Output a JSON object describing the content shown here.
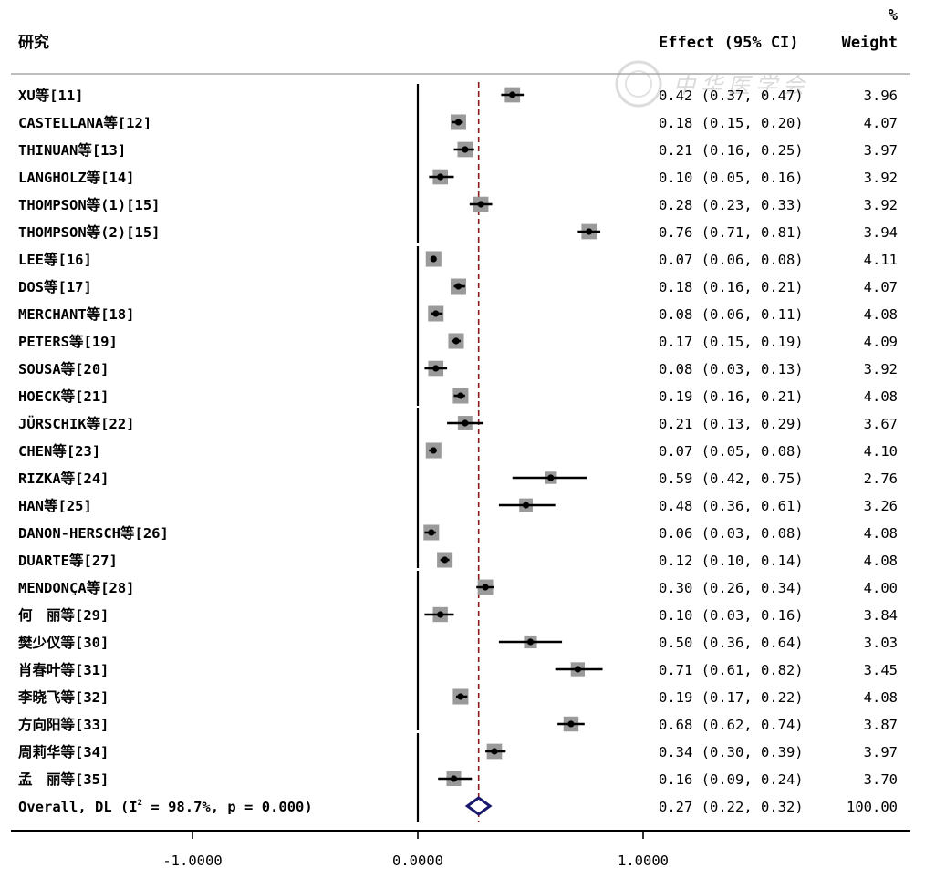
{
  "header": {
    "study": "研究",
    "effect": "Effect (95% CI)",
    "weight_pct": "%",
    "weight": "Weight"
  },
  "watermark": "中华医学会",
  "colors": {
    "ci_line": "#000000",
    "weight_box": "#9a9a9a",
    "point": "#000000",
    "overall_diamond": "#1a1a6e",
    "overall_line": "#8b1a1a",
    "axis": "#000000"
  },
  "chart_data": {
    "type": "forest",
    "xlim": [
      -1.0,
      1.0
    ],
    "x_ticks": [
      -1.0,
      0.0,
      1.0
    ],
    "x_tick_labels": [
      "-1.0000",
      "0.0000",
      "1.0000"
    ],
    "studies": [
      {
        "label": "XU等[11]",
        "effect": 0.42,
        "lo": 0.37,
        "hi": 0.47,
        "ci_text": "0.42 (0.37, 0.47)",
        "weight": "3.96"
      },
      {
        "label": "CASTELLANA等[12]",
        "effect": 0.18,
        "lo": 0.15,
        "hi": 0.2,
        "ci_text": "0.18 (0.15, 0.20)",
        "weight": "4.07"
      },
      {
        "label": "THINUAN等[13]",
        "effect": 0.21,
        "lo": 0.16,
        "hi": 0.25,
        "ci_text": "0.21 (0.16, 0.25)",
        "weight": "3.97"
      },
      {
        "label": "LANGHOLZ等[14]",
        "effect": 0.1,
        "lo": 0.05,
        "hi": 0.16,
        "ci_text": "0.10 (0.05, 0.16)",
        "weight": "3.92"
      },
      {
        "label": "THOMPSON等(1)[15]",
        "effect": 0.28,
        "lo": 0.23,
        "hi": 0.33,
        "ci_text": "0.28 (0.23, 0.33)",
        "weight": "3.92"
      },
      {
        "label": "THOMPSON等(2)[15]",
        "effect": 0.76,
        "lo": 0.71,
        "hi": 0.81,
        "ci_text": "0.76 (0.71, 0.81)",
        "weight": "3.94"
      },
      {
        "label": "LEE等[16]",
        "effect": 0.07,
        "lo": 0.06,
        "hi": 0.08,
        "ci_text": "0.07 (0.06, 0.08)",
        "weight": "4.11"
      },
      {
        "label": "DOS等[17]",
        "effect": 0.18,
        "lo": 0.16,
        "hi": 0.21,
        "ci_text": "0.18 (0.16, 0.21)",
        "weight": "4.07"
      },
      {
        "label": "MERCHANT等[18]",
        "effect": 0.08,
        "lo": 0.06,
        "hi": 0.11,
        "ci_text": "0.08 (0.06, 0.11)",
        "weight": "4.08"
      },
      {
        "label": "PETERS等[19]",
        "effect": 0.17,
        "lo": 0.15,
        "hi": 0.19,
        "ci_text": "0.17 (0.15, 0.19)",
        "weight": "4.09"
      },
      {
        "label": "SOUSA等[20]",
        "effect": 0.08,
        "lo": 0.03,
        "hi": 0.13,
        "ci_text": "0.08 (0.03, 0.13)",
        "weight": "3.92"
      },
      {
        "label": "HOECK等[21]",
        "effect": 0.19,
        "lo": 0.16,
        "hi": 0.21,
        "ci_text": "0.19 (0.16, 0.21)",
        "weight": "4.08"
      },
      {
        "label": "JÜRSCHIK等[22]",
        "effect": 0.21,
        "lo": 0.13,
        "hi": 0.29,
        "ci_text": "0.21 (0.13, 0.29)",
        "weight": "3.67"
      },
      {
        "label": "CHEN等[23]",
        "effect": 0.07,
        "lo": 0.05,
        "hi": 0.08,
        "ci_text": "0.07 (0.05, 0.08)",
        "weight": "4.10"
      },
      {
        "label": "RIZKA等[24]",
        "effect": 0.59,
        "lo": 0.42,
        "hi": 0.75,
        "ci_text": "0.59 (0.42, 0.75)",
        "weight": "2.76"
      },
      {
        "label": "HAN等[25]",
        "effect": 0.48,
        "lo": 0.36,
        "hi": 0.61,
        "ci_text": "0.48 (0.36, 0.61)",
        "weight": "3.26"
      },
      {
        "label": "DANON-HERSCH等[26]",
        "effect": 0.06,
        "lo": 0.03,
        "hi": 0.08,
        "ci_text": "0.06 (0.03, 0.08)",
        "weight": "4.08"
      },
      {
        "label": "DUARTE等[27]",
        "effect": 0.12,
        "lo": 0.1,
        "hi": 0.14,
        "ci_text": "0.12 (0.10, 0.14)",
        "weight": "4.08"
      },
      {
        "label": "MENDONÇA等[28]",
        "effect": 0.3,
        "lo": 0.26,
        "hi": 0.34,
        "ci_text": "0.30 (0.26, 0.34)",
        "weight": "4.00"
      },
      {
        "label": "何　丽等[29]",
        "effect": 0.1,
        "lo": 0.03,
        "hi": 0.16,
        "ci_text": "0.10 (0.03, 0.16)",
        "weight": "3.84"
      },
      {
        "label": "樊少仪等[30]",
        "effect": 0.5,
        "lo": 0.36,
        "hi": 0.64,
        "ci_text": "0.50 (0.36, 0.64)",
        "weight": "3.03"
      },
      {
        "label": "肖春叶等[31]",
        "effect": 0.71,
        "lo": 0.61,
        "hi": 0.82,
        "ci_text": "0.71 (0.61, 0.82)",
        "weight": "3.45"
      },
      {
        "label": "李晓飞等[32]",
        "effect": 0.19,
        "lo": 0.17,
        "hi": 0.22,
        "ci_text": "0.19 (0.17, 0.22)",
        "weight": "4.08"
      },
      {
        "label": "方向阳等[33]",
        "effect": 0.68,
        "lo": 0.62,
        "hi": 0.74,
        "ci_text": "0.68 (0.62, 0.74)",
        "weight": "3.87"
      },
      {
        "label": "周莉华等[34]",
        "effect": 0.34,
        "lo": 0.3,
        "hi": 0.39,
        "ci_text": "0.34 (0.30, 0.39)",
        "weight": "3.97"
      },
      {
        "label": "孟　丽等[35]",
        "effect": 0.16,
        "lo": 0.09,
        "hi": 0.24,
        "ci_text": "0.16 (0.09, 0.24)",
        "weight": "3.70"
      }
    ],
    "overall": {
      "label_prefix": "Overall, DL (I",
      "label_sup": "2",
      "label_suffix": " = 98.7%, p = 0.000)",
      "effect": 0.27,
      "lo": 0.22,
      "hi": 0.32,
      "ci_text": "0.27 (0.22, 0.32)",
      "weight": "100.00"
    }
  }
}
